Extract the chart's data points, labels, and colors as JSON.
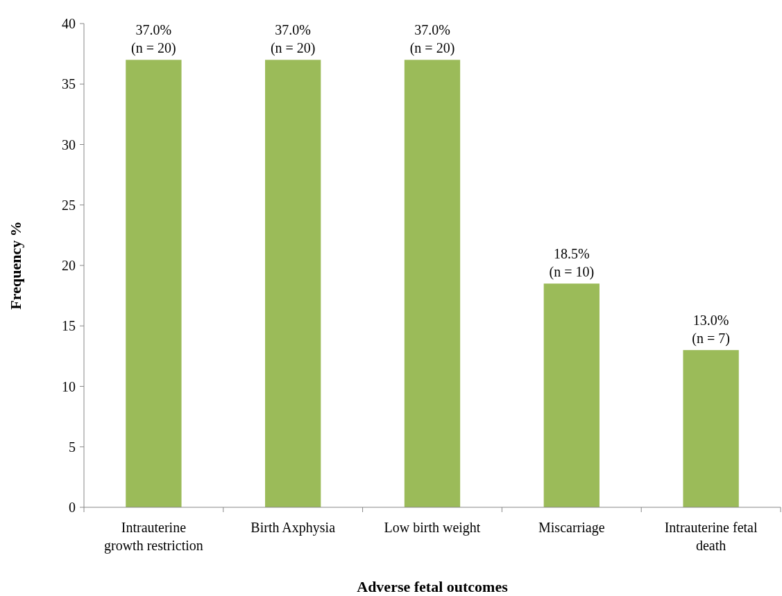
{
  "chart_data": {
    "type": "bar",
    "xlabel": "Adverse fetal outcomes",
    "ylabel": "Frequency %",
    "categories": [
      "Intrauterine growth restriction",
      "Birth Axphysia",
      "Low birth weight",
      "Miscarriage",
      "Intrauterine fetal death"
    ],
    "values": [
      37,
      37,
      37,
      18.5,
      13
    ],
    "value_labels": [
      "37.0%\n(n = 20)",
      "37.0%\n(n = 20)",
      "37.0%\n(n = 20)",
      "18.5%\n(n = 10)",
      "13.0%\n(n = 7)"
    ],
    "color": "#9bbb59",
    "ylim": [
      0,
      40
    ],
    "yticks": [
      0,
      5,
      10,
      15,
      20,
      25,
      30,
      35,
      40
    ],
    "grid": false
  }
}
